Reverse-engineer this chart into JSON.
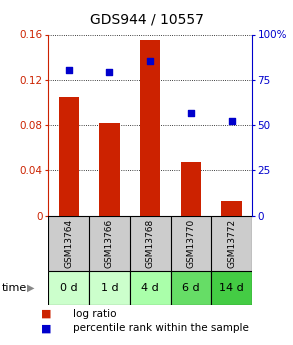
{
  "title": "GDS944 / 10557",
  "categories": [
    "GSM13764",
    "GSM13766",
    "GSM13768",
    "GSM13770",
    "GSM13772"
  ],
  "time_labels": [
    "0 d",
    "1 d",
    "4 d",
    "6 d",
    "14 d"
  ],
  "log_ratio": [
    0.105,
    0.082,
    0.155,
    0.047,
    0.013
  ],
  "percentile_rank": [
    0.805,
    0.795,
    0.855,
    0.565,
    0.525
  ],
  "bar_color": "#cc2200",
  "dot_color": "#0000cc",
  "ylim_left": [
    0,
    0.16
  ],
  "ylim_right": [
    0,
    1.0
  ],
  "yticks_left": [
    0,
    0.04,
    0.08,
    0.12,
    0.16
  ],
  "ytick_labels_left": [
    "0",
    "0.04",
    "0.08",
    "0.12",
    "0.16"
  ],
  "yticks_right": [
    0,
    0.25,
    0.5,
    0.75,
    1.0
  ],
  "ytick_labels_right": [
    "0",
    "25",
    "50",
    "75",
    "100%"
  ],
  "time_colors": [
    "#ccffcc",
    "#ccffcc",
    "#aaffaa",
    "#66dd66",
    "#44cc44"
  ],
  "gsm_bg_color": "#cccccc",
  "bar_width": 0.5
}
